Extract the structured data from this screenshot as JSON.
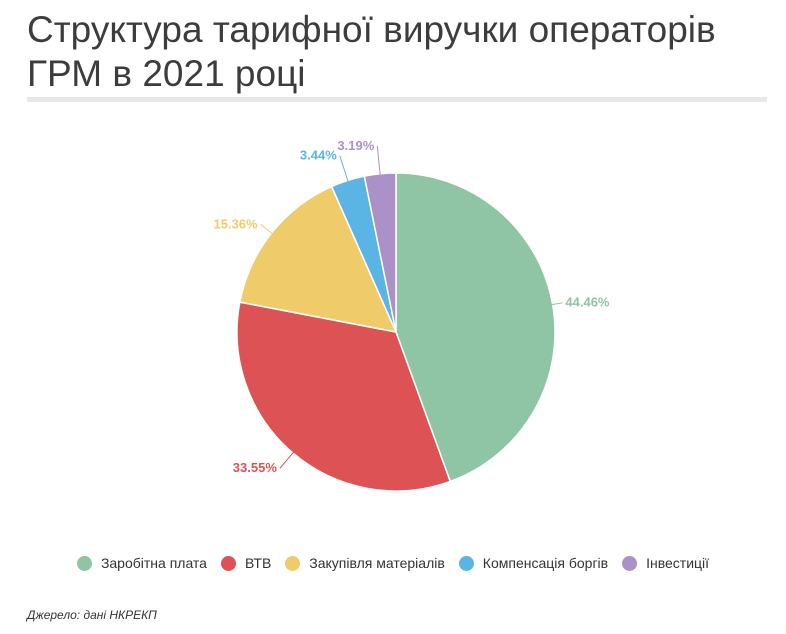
{
  "title": "Структура тарифної виручки операторів ГРМ в 2021 році",
  "source": "Джерело: дані НКРЕКП",
  "chart_data": {
    "type": "pie",
    "slices": [
      {
        "name": "Заробітна плата",
        "value": 44.46,
        "label": "44.46%",
        "color": "#8fc4a4"
      },
      {
        "name": "ВТВ",
        "value": 33.55,
        "label": "33.55%",
        "color": "#dc5255"
      },
      {
        "name": "Закупівля матеріалів",
        "value": 15.36,
        "label": "15.36%",
        "color": "#f0cb6a"
      },
      {
        "name": "Компенсація боргів",
        "value": 3.44,
        "label": "3.44%",
        "color": "#5bb5e4"
      },
      {
        "name": "Інвестиції",
        "value": 3.19,
        "label": "3.19%",
        "color": "#ab91c8"
      }
    ],
    "legend": "bottom"
  }
}
